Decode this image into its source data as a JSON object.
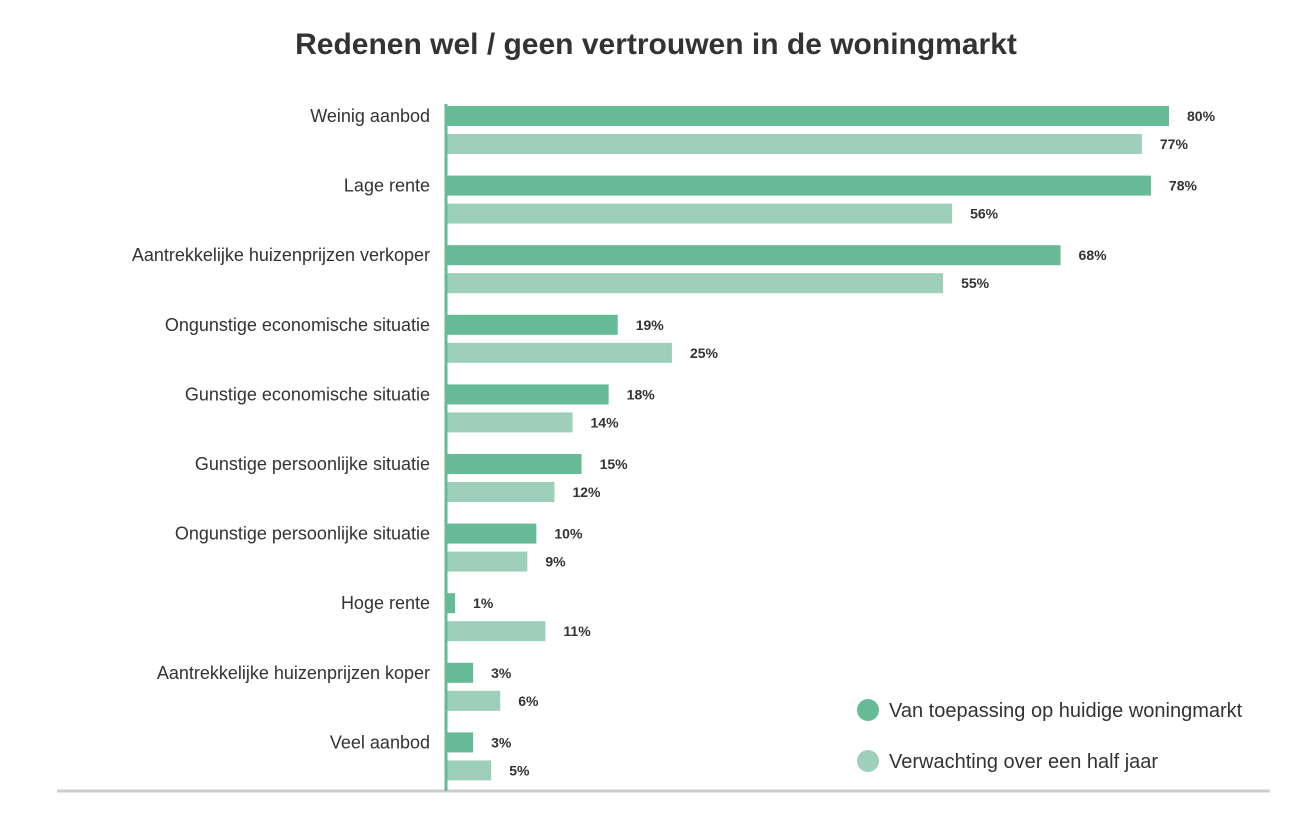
{
  "chart_data": {
    "type": "bar",
    "orientation": "horizontal",
    "title": "Redenen wel / geen vertrouwen in de woningmarkt",
    "categories": [
      "Weinig aanbod",
      "Lage rente",
      "Aantrekkelijke huizenprijzen verkoper",
      "Ongunstige economische situatie",
      "Gunstige economische situatie",
      "Gunstige persoonlijke situatie",
      "Ongunstige persoonlijke situatie",
      "Hoge rente",
      "Aantrekkelijke huizenprijzen koper",
      "Veel aanbod"
    ],
    "series": [
      {
        "name": "Van toepassing op huidige woningmarkt",
        "values": [
          80,
          78,
          68,
          19,
          18,
          15,
          10,
          1,
          3,
          3
        ],
        "labels": [
          "80%",
          "78%",
          "68%",
          "19%",
          "18%",
          "15%",
          "10%",
          "1%",
          "3%",
          "3%"
        ],
        "color": "#66ba96"
      },
      {
        "name": "Verwachting over een half jaar",
        "values": [
          77,
          56,
          55,
          25,
          14,
          12,
          9,
          11,
          6,
          5
        ],
        "labels": [
          "77%",
          "56%",
          "55%",
          "25%",
          "14%",
          "12%",
          "9%",
          "11%",
          "6%",
          "5%"
        ],
        "color": "#9dcfbb"
      }
    ],
    "xlim": [
      0,
      80
    ],
    "grid": false,
    "legend_position": "bottom-right",
    "axis_color": "#66ba96",
    "baseline_color": "#cccccc"
  }
}
